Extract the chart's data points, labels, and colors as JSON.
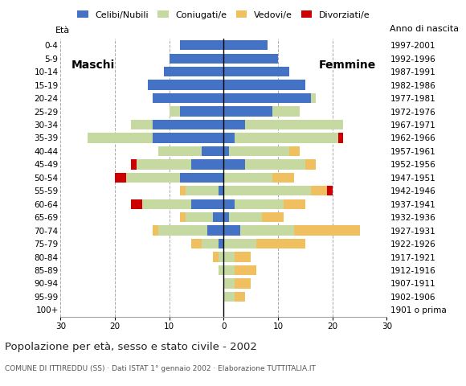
{
  "age_groups": [
    "100+",
    "95-99",
    "90-94",
    "85-89",
    "80-84",
    "75-79",
    "70-74",
    "65-69",
    "60-64",
    "55-59",
    "50-54",
    "45-49",
    "40-44",
    "35-39",
    "30-34",
    "25-29",
    "20-24",
    "15-19",
    "10-14",
    "5-9",
    "0-4"
  ],
  "birth_years": [
    "1901 o prima",
    "1902-1906",
    "1907-1911",
    "1912-1916",
    "1917-1921",
    "1922-1926",
    "1927-1931",
    "1932-1936",
    "1937-1941",
    "1942-1946",
    "1947-1951",
    "1952-1956",
    "1957-1961",
    "1962-1966",
    "1967-1971",
    "1972-1976",
    "1977-1981",
    "1982-1986",
    "1987-1991",
    "1992-1996",
    "1997-2001"
  ],
  "males": {
    "celibe": [
      0,
      0,
      0,
      0,
      0,
      1,
      3,
      2,
      6,
      1,
      8,
      6,
      4,
      13,
      13,
      8,
      13,
      14,
      11,
      10,
      8
    ],
    "coniugato": [
      0,
      0,
      0,
      1,
      1,
      3,
      9,
      5,
      9,
      6,
      10,
      10,
      8,
      12,
      4,
      2,
      0,
      0,
      0,
      0,
      0
    ],
    "vedovo": [
      0,
      0,
      0,
      0,
      1,
      2,
      1,
      1,
      0,
      1,
      0,
      0,
      0,
      0,
      0,
      0,
      0,
      0,
      0,
      0,
      0
    ],
    "divorziato": [
      0,
      0,
      0,
      0,
      0,
      0,
      0,
      0,
      2,
      0,
      2,
      1,
      0,
      0,
      0,
      0,
      0,
      0,
      0,
      0,
      0
    ]
  },
  "females": {
    "nubile": [
      0,
      0,
      0,
      0,
      0,
      0,
      3,
      1,
      2,
      0,
      0,
      4,
      1,
      2,
      4,
      9,
      16,
      15,
      12,
      10,
      8
    ],
    "coniugata": [
      0,
      2,
      2,
      2,
      2,
      6,
      10,
      6,
      9,
      16,
      9,
      11,
      11,
      19,
      18,
      5,
      1,
      0,
      0,
      0,
      0
    ],
    "vedova": [
      0,
      2,
      3,
      4,
      3,
      9,
      12,
      4,
      4,
      3,
      4,
      2,
      2,
      0,
      0,
      0,
      0,
      0,
      0,
      0,
      0
    ],
    "divorziata": [
      0,
      0,
      0,
      0,
      0,
      0,
      0,
      0,
      0,
      1,
      0,
      0,
      0,
      1,
      0,
      0,
      0,
      0,
      0,
      0,
      0
    ]
  },
  "color_celibe": "#4472c4",
  "color_coniugato": "#c5d9a0",
  "color_vedovo": "#f0c060",
  "color_divorziato": "#cc0000",
  "xlim": 30,
  "title": "Popolazione per età, sesso e stato civile - 2002",
  "subtitle": "COMUNE DI ITTIREDDU (SS) · Dati ISTAT 1° gennaio 2002 · Elaborazione TUTTITALIA.IT",
  "ylabel_left": "Età",
  "ylabel_right": "Anno di nascita",
  "label_maschi": "Maschi",
  "label_femmine": "Femmine",
  "legend_labels": [
    "Celibi/Nubili",
    "Coniugati/e",
    "Vedovi/e",
    "Divorziati/e"
  ]
}
